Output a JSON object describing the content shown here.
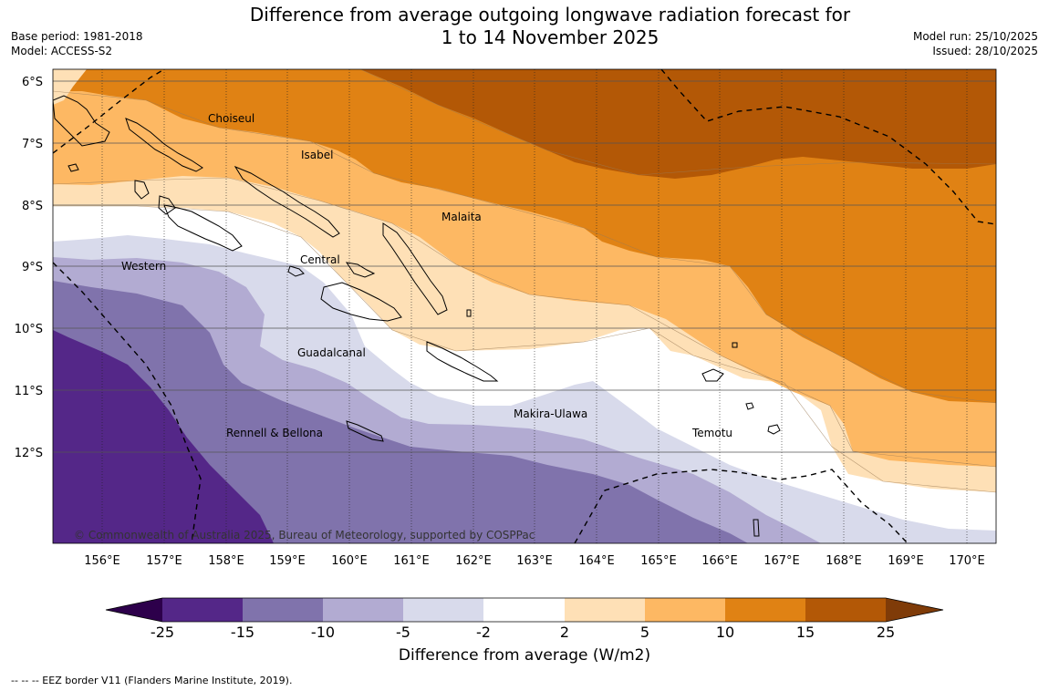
{
  "header": {
    "title_line1": "Difference from average outgoing longwave radiation forecast for",
    "title_line2": "1 to 14 November 2025",
    "base_period": "Base period: 1981-2018",
    "model": "Model: ACCESS-S2",
    "model_run": "Model run: 25/10/2025",
    "issued": "Issued: 28/10/2025"
  },
  "map": {
    "lat_ticks": [
      "6°S",
      "7°S",
      "8°S",
      "9°S",
      "10°S",
      "11°S",
      "12°S"
    ],
    "lon_ticks": [
      "156°E",
      "157°E",
      "158°E",
      "159°E",
      "160°E",
      "161°E",
      "162°E",
      "163°E",
      "164°E",
      "165°E",
      "166°E",
      "167°E",
      "168°E",
      "169°E",
      "170°E"
    ],
    "provinces": [
      "Choiseul",
      "Isabel",
      "Malaita",
      "Western",
      "Central",
      "Guadalcanal",
      "Makira-Ulawa",
      "Rennell & Bellona",
      "Temotu"
    ],
    "copyright": "© Commonwealth of Australia 2025, Bureau of Meteorology, supported by COSPPac"
  },
  "colorbar": {
    "tick_labels": [
      "-25",
      "-15",
      "-10",
      "-5",
      "-2",
      "2",
      "5",
      "10",
      "15",
      "25"
    ],
    "colors": [
      "#2d004b",
      "#542788",
      "#8073ac",
      "#b2abd2",
      "#d8daeb",
      "#ffffff",
      "#fee0b6",
      "#fdb863",
      "#e08214",
      "#b35806",
      "#7f3b08"
    ],
    "label": "Difference from average (W/m2)"
  },
  "legend": {
    "eez_note": "--  --  -- EEZ border V11 (Flanders Marine Institute, 2019)."
  }
}
